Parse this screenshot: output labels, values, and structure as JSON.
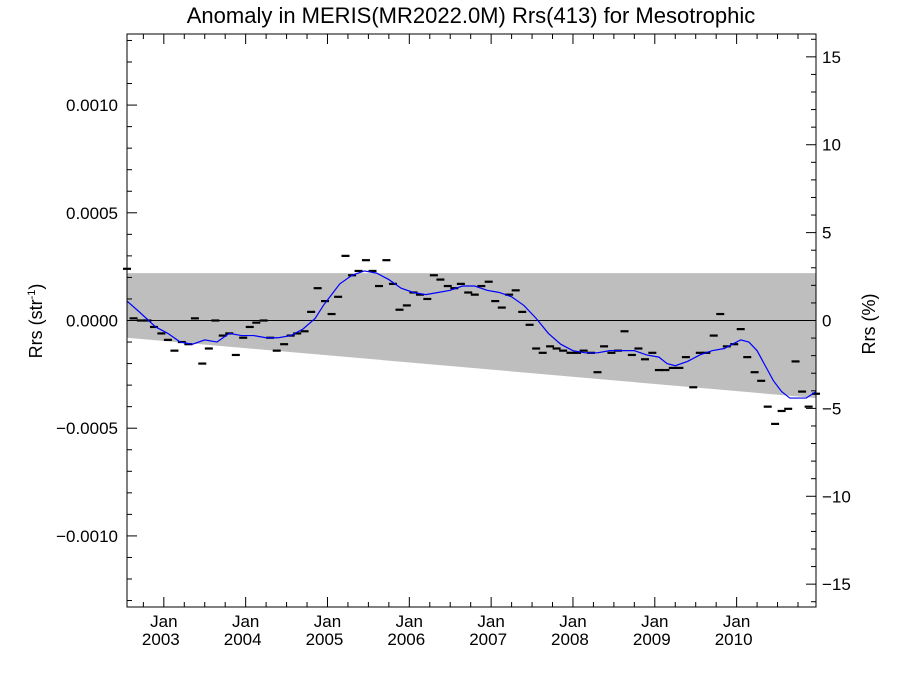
{
  "chart_data": {
    "type": "line",
    "title": "Anomaly in MERIS(MR2022.0M) Rrs(413) for Mesotrophic",
    "ylabel_left": "Rrs (str",
    "ylabel_left_sup": "-1",
    "ylabel_left_close": ")",
    "ylabel_right": "Rrs (%)",
    "xlim": [
      2002.55,
      2010.97
    ],
    "ylim_left": [
      -0.00133,
      0.00133
    ],
    "ylim_right": [
      -16.3,
      16.3
    ],
    "yticks_left": [
      {
        "value": 0.001,
        "label": "0.0010"
      },
      {
        "value": 0.0005,
        "label": "0.0005"
      },
      {
        "value": 0.0,
        "label": "0.0000"
      },
      {
        "value": -0.0005,
        "label": "−0.0005"
      },
      {
        "value": -0.001,
        "label": "−0.0010"
      }
    ],
    "yticks_right": [
      {
        "value": 15,
        "label": "15"
      },
      {
        "value": 10,
        "label": "10"
      },
      {
        "value": 5,
        "label": "5"
      },
      {
        "value": 0,
        "label": "0"
      },
      {
        "value": -5,
        "label": "−5"
      },
      {
        "value": -10,
        "label": "−10"
      },
      {
        "value": -15,
        "label": "−15"
      }
    ],
    "xticks": [
      {
        "value": 2003.0,
        "month": "Jan",
        "year": "2003"
      },
      {
        "value": 2004.0,
        "month": "Jan",
        "year": "2004"
      },
      {
        "value": 2005.0,
        "month": "Jan",
        "year": "2005"
      },
      {
        "value": 2006.0,
        "month": "Jan",
        "year": "2006"
      },
      {
        "value": 2007.0,
        "month": "Jan",
        "year": "2007"
      },
      {
        "value": 2008.0,
        "month": "Jan",
        "year": "2008"
      },
      {
        "value": 2009.0,
        "month": "Jan",
        "year": "2009"
      },
      {
        "value": 2010.0,
        "month": "Jan",
        "year": "2010"
      }
    ],
    "band": {
      "x": [
        2002.55,
        2010.97
      ],
      "upper": [
        0.00022,
        0.00022
      ],
      "lower": [
        -8e-05,
        -0.00036
      ]
    },
    "zero_line": 0,
    "monthly_anomalies": {
      "x": [
        2002.55,
        2002.63,
        2002.72,
        2002.8,
        2002.88,
        2002.97,
        2003.05,
        2003.13,
        2003.22,
        2003.3,
        2003.38,
        2003.47,
        2003.55,
        2003.63,
        2003.72,
        2003.8,
        2003.88,
        2003.97,
        2004.05,
        2004.13,
        2004.22,
        2004.3,
        2004.38,
        2004.47,
        2004.55,
        2004.63,
        2004.72,
        2004.8,
        2004.88,
        2004.97,
        2005.05,
        2005.13,
        2005.22,
        2005.3,
        2005.38,
        2005.47,
        2005.55,
        2005.63,
        2005.72,
        2005.8,
        2005.88,
        2005.97,
        2006.05,
        2006.13,
        2006.22,
        2006.3,
        2006.38,
        2006.47,
        2006.55,
        2006.63,
        2006.72,
        2006.8,
        2006.88,
        2006.97,
        2007.05,
        2007.13,
        2007.22,
        2007.3,
        2007.38,
        2007.47,
        2007.55,
        2007.63,
        2007.72,
        2007.8,
        2007.88,
        2007.97,
        2008.05,
        2008.13,
        2008.22,
        2008.3,
        2008.38,
        2008.47,
        2008.55,
        2008.63,
        2008.72,
        2008.8,
        2008.88,
        2008.97,
        2009.05,
        2009.13,
        2009.22,
        2009.3,
        2009.38,
        2009.47,
        2009.55,
        2009.63,
        2009.72,
        2009.8,
        2009.88,
        2009.97,
        2010.05,
        2010.13,
        2010.22,
        2010.3,
        2010.38,
        2010.47,
        2010.55,
        2010.63,
        2010.72,
        2010.8,
        2010.88,
        2010.97
      ],
      "y": [
        0.00024,
        1e-05,
        0.0,
        0.0,
        -3e-05,
        -6e-05,
        -9e-05,
        -0.00014,
        -0.0001,
        -0.00011,
        1e-05,
        -0.0002,
        -0.00013,
        0.0,
        -7e-05,
        -6e-05,
        -0.00016,
        -8e-05,
        -3e-05,
        -1e-05,
        0.0,
        -8e-05,
        -0.00014,
        -0.00011,
        -7e-05,
        -6e-05,
        -5e-05,
        4e-05,
        0.00015,
        9e-05,
        3e-05,
        0.00011,
        0.0003,
        0.00021,
        0.00023,
        0.00028,
        0.00023,
        0.00016,
        0.00028,
        0.00017,
        5e-05,
        7e-05,
        0.00013,
        0.00012,
        0.0001,
        0.00021,
        0.00019,
        0.00016,
        0.00015,
        0.00017,
        0.00013,
        0.00012,
        0.00016,
        0.00018,
        9e-05,
        6e-05,
        0.00012,
        0.00014,
        4e-05,
        -2e-05,
        -0.00013,
        -0.00015,
        -0.00012,
        -0.00013,
        -0.00014,
        -0.00015,
        -0.00015,
        -0.00014,
        -0.00015,
        -0.00024,
        -0.00012,
        -0.00015,
        -0.00014,
        -5e-05,
        -0.00016,
        -0.00013,
        -0.00018,
        -0.00015,
        -0.00023,
        -0.00023,
        -0.00022,
        -0.00022,
        -0.00017,
        -0.00031,
        -0.00015,
        -0.00015,
        -7e-05,
        3e-05,
        -0.00012,
        -0.00011,
        -4e-05,
        -0.00017,
        -0.00024,
        -0.00028,
        -0.0004,
        -0.00048,
        -0.00042,
        -0.00041,
        -0.00019,
        -0.00033,
        -0.0004,
        -0.00034
      ]
    },
    "smoothed": {
      "x": [
        2002.55,
        2002.7,
        2002.9,
        2003.05,
        2003.2,
        2003.35,
        2003.5,
        2003.65,
        2003.8,
        2003.95,
        2004.1,
        2004.25,
        2004.4,
        2004.55,
        2004.7,
        2004.85,
        2004.95,
        2005.05,
        2005.15,
        2005.3,
        2005.45,
        2005.6,
        2005.75,
        2005.9,
        2006.05,
        2006.2,
        2006.35,
        2006.5,
        2006.65,
        2006.8,
        2006.95,
        2007.1,
        2007.25,
        2007.4,
        2007.55,
        2007.7,
        2007.85,
        2008.0,
        2008.15,
        2008.3,
        2008.45,
        2008.6,
        2008.75,
        2008.9,
        2009.05,
        2009.15,
        2009.25,
        2009.4,
        2009.55,
        2009.7,
        2009.85,
        2009.95,
        2010.05,
        2010.15,
        2010.25,
        2010.35,
        2010.45,
        2010.55,
        2010.65,
        2010.75,
        2010.85,
        2010.93,
        2010.97
      ],
      "y": [
        9e-05,
        4e-05,
        -3e-05,
        -6e-05,
        -0.0001,
        -0.00011,
        -9e-05,
        -0.0001,
        -6e-05,
        -7e-05,
        -7e-05,
        -8e-05,
        -8e-05,
        -7e-05,
        -4e-05,
        1e-05,
        7e-05,
        0.00012,
        0.00017,
        0.00021,
        0.00023,
        0.00022,
        0.00019,
        0.00015,
        0.00013,
        0.00012,
        0.00013,
        0.00014,
        0.00016,
        0.00016,
        0.00014,
        0.00013,
        0.00011,
        7e-05,
        1e-05,
        -6e-05,
        -0.00011,
        -0.00014,
        -0.00015,
        -0.00015,
        -0.00014,
        -0.00014,
        -0.00014,
        -0.00016,
        -0.00017,
        -0.0002,
        -0.00021,
        -0.00019,
        -0.00016,
        -0.00014,
        -0.00013,
        -0.00011,
        -9e-05,
        -0.0001,
        -0.00014,
        -0.00021,
        -0.00028,
        -0.00033,
        -0.00036,
        -0.00036,
        -0.00036,
        -0.00034,
        -0.00033
      ]
    },
    "colors": {
      "band": "#bebebe",
      "smoothed": "#0000ff",
      "points": "#000000",
      "axes": "#000000"
    }
  }
}
